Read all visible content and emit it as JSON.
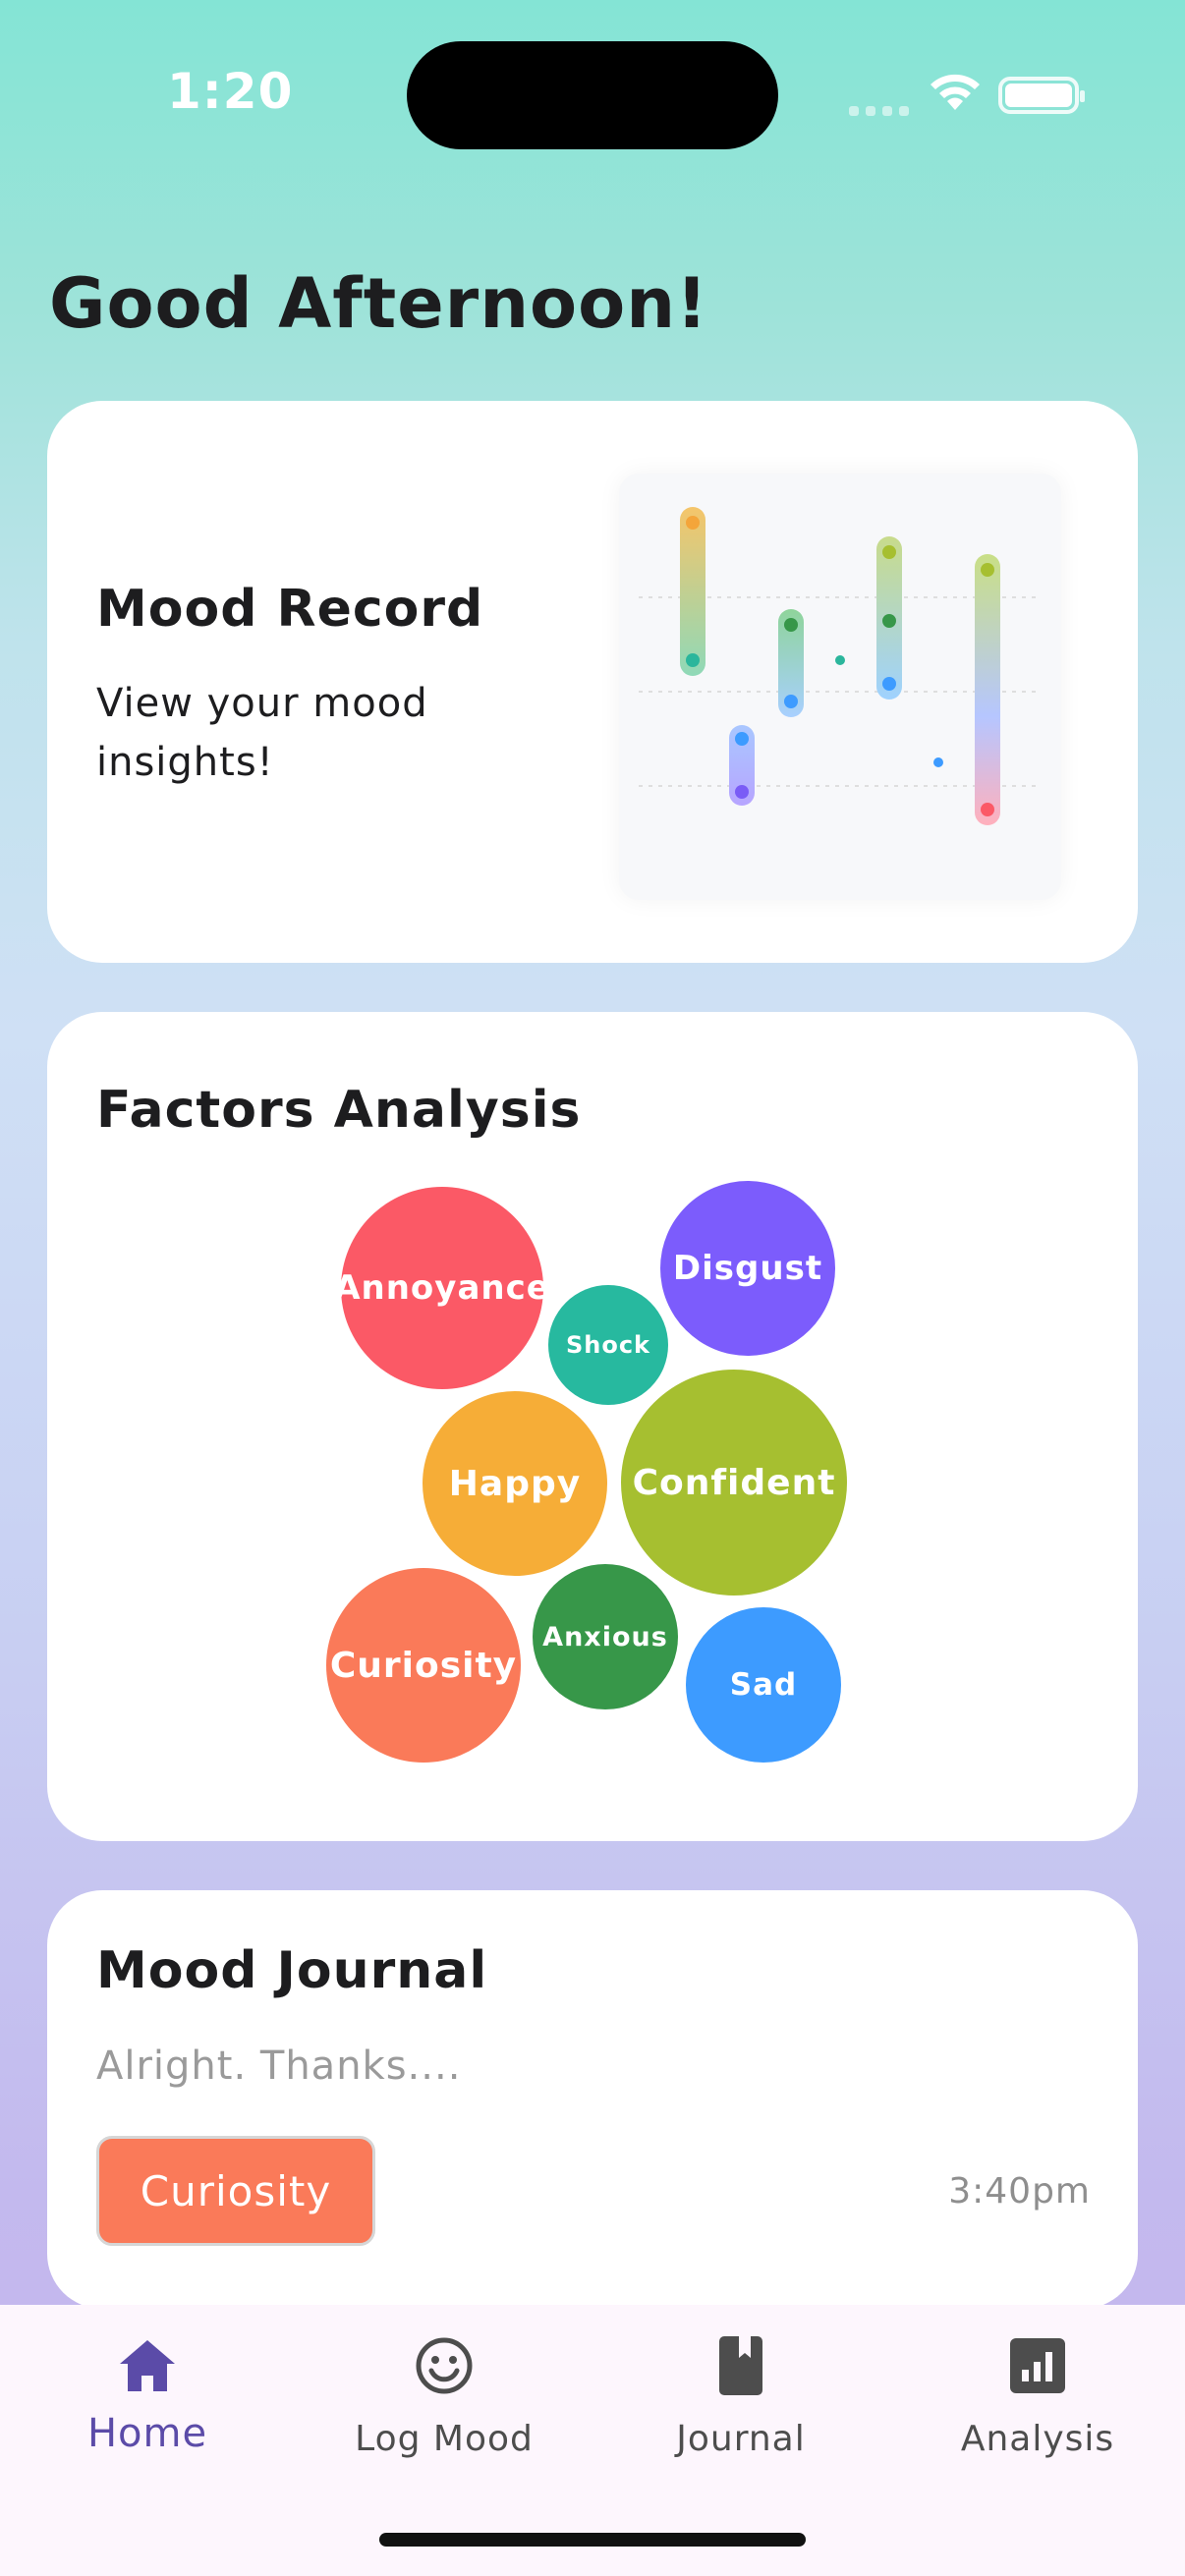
{
  "status": {
    "time": "1:20"
  },
  "greeting": "Good Afternoon!",
  "mood_record": {
    "title": "Mood Record",
    "subtitle": "View your mood insights!"
  },
  "factors": {
    "title": "Factors Analysis",
    "bubbles": [
      {
        "label": "Annoyance",
        "color": "#fb5966"
      },
      {
        "label": "Disgust",
        "color": "#7c5cfc"
      },
      {
        "label": "Shock",
        "color": "#27b99f"
      },
      {
        "label": "Happy",
        "color": "#f6ad37"
      },
      {
        "label": "Confident",
        "color": "#a6bf30"
      },
      {
        "label": "Curiosity",
        "color": "#fa7a59"
      },
      {
        "label": "Anxious",
        "color": "#379749"
      },
      {
        "label": "Sad",
        "color": "#3d9bff"
      }
    ]
  },
  "journal": {
    "title": "Mood Journal",
    "entry_preview": "Alright. Thanks....",
    "tag": "Curiosity",
    "tag_color": "#fa7a59",
    "time": "3:40pm"
  },
  "tabs": [
    {
      "label": "Home",
      "icon": "home-icon",
      "active": true
    },
    {
      "label": "Log Mood",
      "icon": "smiley-icon",
      "active": false
    },
    {
      "label": "Journal",
      "icon": "book-icon",
      "active": false
    },
    {
      "label": "Analysis",
      "icon": "analysis-icon",
      "active": false
    }
  ],
  "colors": {
    "accent": "#5b4ba8"
  }
}
